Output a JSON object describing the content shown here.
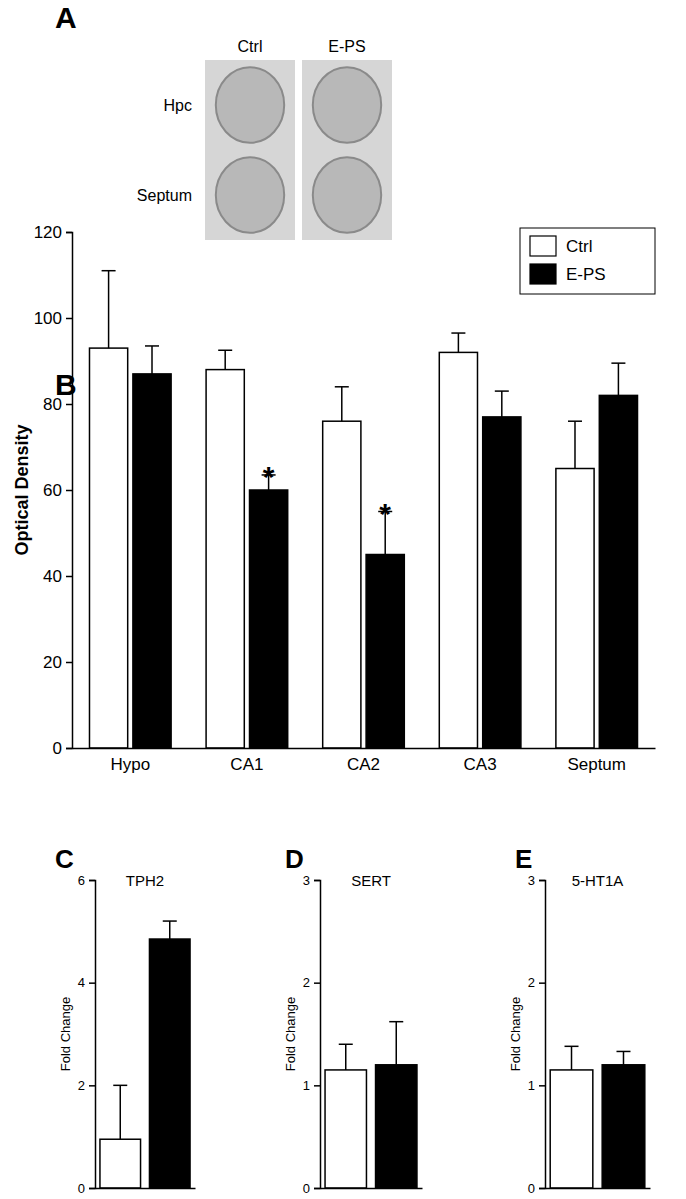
{
  "panel_a": {
    "label": "A",
    "columns": [
      "Ctrl",
      "E-PS"
    ],
    "rows": [
      "Hpc",
      "Septum"
    ]
  },
  "chart_data": [
    {
      "type": "bar",
      "annotations": [
        "B"
      ],
      "y_label": "Optical Density",
      "categories": [
        "Hypo",
        "CA1",
        "CA2",
        "CA3",
        "Septum"
      ],
      "series": [
        {
          "name": "Ctrl",
          "color": "#ffffff",
          "values": [
            93,
            88,
            76,
            92,
            65
          ],
          "errors": [
            18,
            4.5,
            8,
            4.5,
            11
          ]
        },
        {
          "name": "E-PS",
          "color": "#000000",
          "values": [
            87,
            60,
            45,
            77,
            82
          ],
          "errors": [
            6.5,
            3.5,
            10,
            6,
            7.5
          ],
          "significance": [
            null,
            "*",
            "*",
            null,
            null
          ]
        }
      ],
      "ylim": [
        0,
        120
      ],
      "yticks": [
        0,
        20,
        40,
        60,
        80,
        100,
        120
      ],
      "legend": "top-right"
    },
    {
      "type": "bar",
      "annotations": [
        "C"
      ],
      "title": "TPH2",
      "y_label": "Fold Change",
      "categories": [
        null,
        null
      ],
      "values": [
        0.95,
        4.85
      ],
      "errors": [
        1.05,
        0.35
      ],
      "colors": [
        "#ffffff",
        "#000000"
      ],
      "ylim": [
        0,
        6
      ],
      "yticks": [
        0,
        2,
        4,
        6
      ]
    },
    {
      "type": "bar",
      "annotations": [
        "D"
      ],
      "title": "SERT",
      "y_label": "Fold Change",
      "categories": [
        null,
        null
      ],
      "values": [
        1.15,
        1.2
      ],
      "errors": [
        0.25,
        0.42
      ],
      "colors": [
        "#ffffff",
        "#000000"
      ],
      "ylim": [
        0,
        3
      ],
      "yticks": [
        0,
        1,
        2,
        3
      ]
    },
    {
      "type": "bar",
      "annotations": [
        "E"
      ],
      "title": "5-HT1A",
      "y_label": "Fold Change",
      "categories": [
        null,
        null
      ],
      "values": [
        1.15,
        1.2
      ],
      "errors": [
        0.23,
        0.13
      ],
      "colors": [
        "#ffffff",
        "#000000"
      ],
      "ylim": [
        0,
        3
      ],
      "yticks": [
        0,
        1,
        2,
        3
      ]
    }
  ]
}
